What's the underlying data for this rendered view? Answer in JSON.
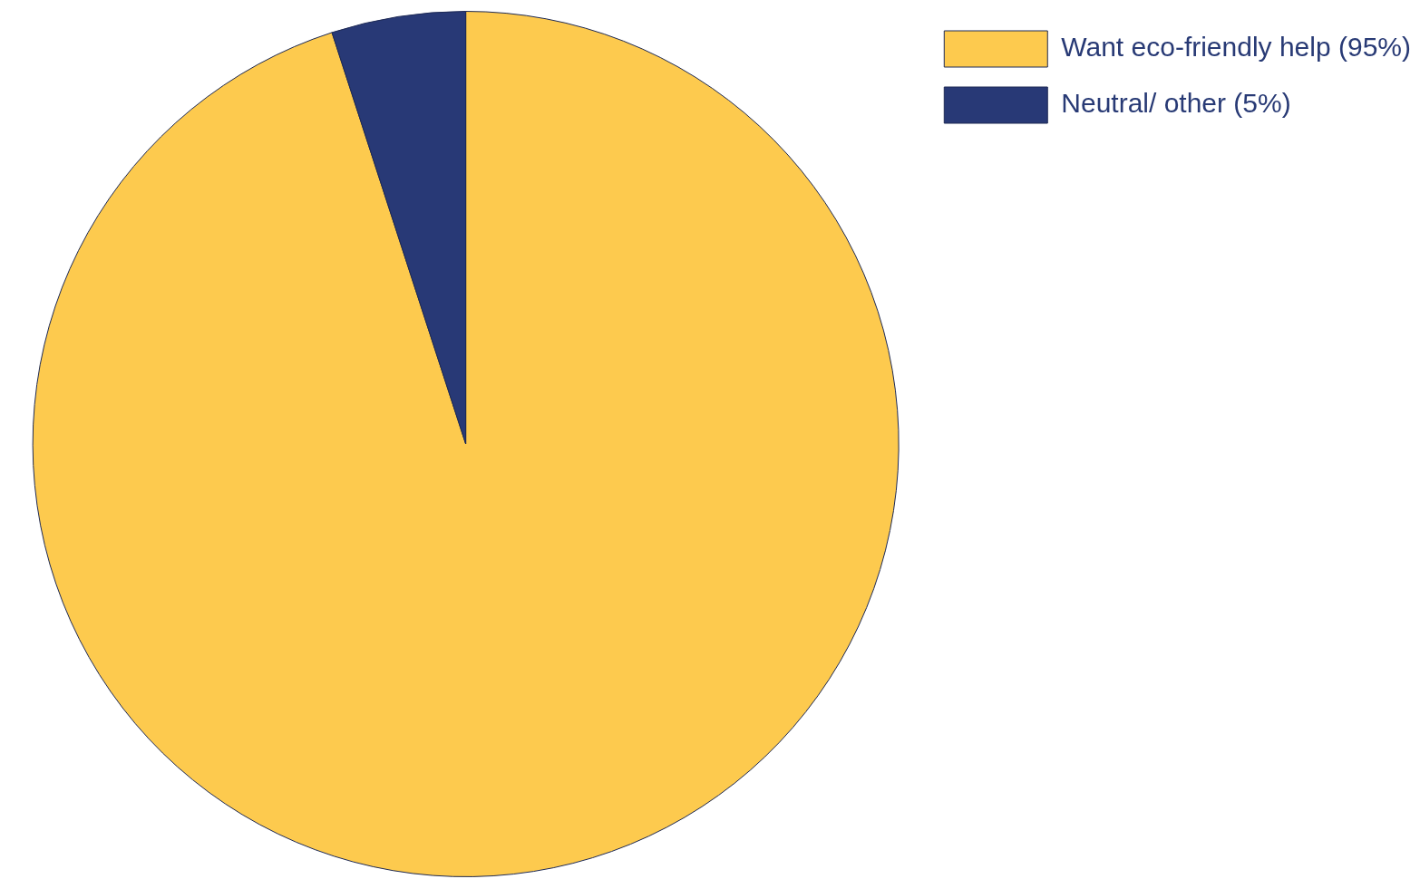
{
  "chart_data": {
    "type": "pie",
    "categories": [
      "Want eco-friendly help (95%)",
      "Neutral/ other (5%)"
    ],
    "values": [
      95,
      5
    ],
    "colors": [
      "#fdca4e",
      "#283976"
    ],
    "legend": "right"
  }
}
